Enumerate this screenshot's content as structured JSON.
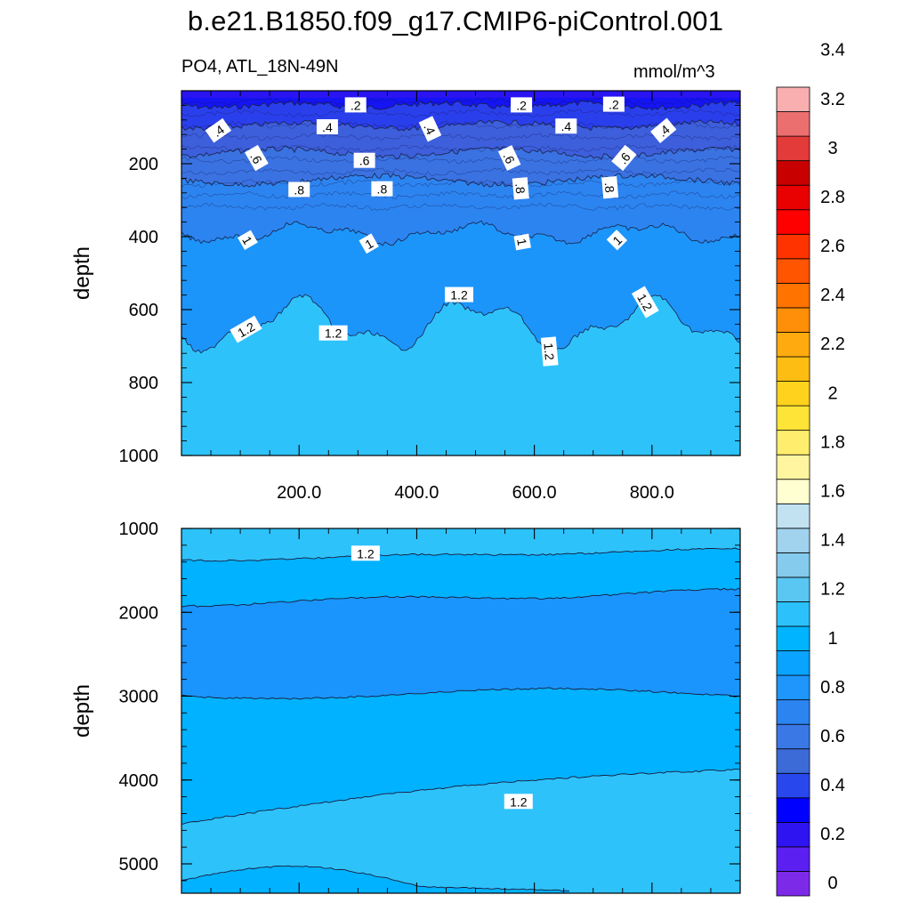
{
  "title": "b.e21.B1850.f09_g17.CMIP6-piControl.001",
  "chart_data": [
    {
      "type": "contour",
      "panel": "upper",
      "variable_label": "PO4, ATL_18N-49N",
      "units_label": "mmol/m^3",
      "ylabel": "depth",
      "xlim": [
        0,
        950
      ],
      "ylim": [
        0,
        1000
      ],
      "xticks": [
        200,
        400,
        600,
        800
      ],
      "xtick_labels": [
        "200.0",
        "400.0",
        "600.0",
        "800.0"
      ],
      "yticks": [
        200,
        400,
        600,
        800,
        1000
      ],
      "ytick_labels": [
        "200",
        "400",
        "600",
        "800",
        "1000"
      ],
      "contour_levels_approx_depth": [
        {
          "level": 0.2,
          "depth": 40
        },
        {
          "level": 0.4,
          "depth": 95
        },
        {
          "level": 0.6,
          "depth": 170
        },
        {
          "level": 0.8,
          "depth": 245
        },
        {
          "level": 1.0,
          "depth": 390
        },
        {
          "level": 1.2,
          "depth": 640
        }
      ],
      "contour_labels": [
        {
          "text": ".2",
          "x": 296,
          "depth": 40,
          "angle": 0
        },
        {
          "text": ".2",
          "x": 578,
          "depth": 40,
          "angle": 0
        },
        {
          "text": ".2",
          "x": 735,
          "depth": 38,
          "angle": 0
        },
        {
          "text": ".4",
          "x": 63,
          "depth": 110,
          "angle": -35
        },
        {
          "text": ".4",
          "x": 248,
          "depth": 100,
          "angle": 0
        },
        {
          "text": ".4",
          "x": 422,
          "depth": 105,
          "angle": 65
        },
        {
          "text": ".4",
          "x": 654,
          "depth": 98,
          "angle": 0
        },
        {
          "text": ".4",
          "x": 820,
          "depth": 110,
          "angle": -40
        },
        {
          "text": ".6",
          "x": 127,
          "depth": 185,
          "angle": 60
        },
        {
          "text": ".6",
          "x": 311,
          "depth": 192,
          "angle": 0
        },
        {
          "text": ".6",
          "x": 557,
          "depth": 185,
          "angle": 65
        },
        {
          "text": ".6",
          "x": 753,
          "depth": 185,
          "angle": -50
        },
        {
          "text": ".8",
          "x": 200,
          "depth": 272,
          "angle": 0
        },
        {
          "text": ".8",
          "x": 341,
          "depth": 270,
          "angle": 0
        },
        {
          "text": ".8",
          "x": 576,
          "depth": 268,
          "angle": 85
        },
        {
          "text": ".8",
          "x": 728,
          "depth": 265,
          "angle": 85
        },
        {
          "text": "1",
          "x": 112,
          "depth": 410,
          "angle": 60
        },
        {
          "text": "1",
          "x": 319,
          "depth": 420,
          "angle": -30
        },
        {
          "text": "1",
          "x": 579,
          "depth": 415,
          "angle": 80
        },
        {
          "text": "1",
          "x": 741,
          "depth": 410,
          "angle": -45
        },
        {
          "text": "1.2",
          "x": 110,
          "depth": 655,
          "angle": -30
        },
        {
          "text": "1.2",
          "x": 258,
          "depth": 665,
          "angle": 0
        },
        {
          "text": "1.2",
          "x": 472,
          "depth": 560,
          "angle": 0
        },
        {
          "text": "1.2",
          "x": 625,
          "depth": 715,
          "angle": 85
        },
        {
          "text": "1.2",
          "x": 788,
          "depth": 580,
          "angle": 60
        }
      ]
    },
    {
      "type": "contour",
      "panel": "lower",
      "ylabel": "depth",
      "xlim": [
        0,
        950
      ],
      "ylim": [
        1000,
        5350
      ],
      "yticks": [
        1000,
        2000,
        3000,
        4000,
        5000
      ],
      "ytick_labels": [
        "1000",
        "2000",
        "3000",
        "4000",
        "5000"
      ],
      "contour_levels_approx_depth": [
        {
          "level": 1.2,
          "depth_left": 1380,
          "depth_right": 1250
        },
        {
          "level": 1.0,
          "depth_left": 1900,
          "depth_right": 1750
        },
        {
          "level": 1.0,
          "depth_left": 2970,
          "depth_right": 2970
        },
        {
          "level": 1.2,
          "depth_left": 4520,
          "depth_right": 3870
        }
      ],
      "contour_labels": [
        {
          "text": "1.2",
          "x": 313,
          "depth": 1300,
          "angle": 0
        },
        {
          "text": "1.2",
          "x": 573,
          "depth": 4260,
          "angle": 0
        }
      ]
    }
  ],
  "colorbar": {
    "labels": [
      "3.4",
      "3.2",
      "3",
      "2.8",
      "2.6",
      "2.4",
      "2.2",
      "2",
      "1.8",
      "1.6",
      "1.4",
      "1.2",
      "1",
      "0.8",
      "0.6",
      "0.4",
      "0.2",
      "0"
    ],
    "colors": [
      "#7c2ae8",
      "#5c1ff2",
      "#2f14f2",
      "#0000ff",
      "#2848ee",
      "#3c6bd8",
      "#3a78e6",
      "#2c84f0",
      "#1e96fb",
      "#0aa3ff",
      "#00b4ff",
      "#2cc1fb",
      "#5ac6f2",
      "#84cbee",
      "#a1d2ee",
      "#c2e2f2",
      "#ffffd1",
      "#fff5a0",
      "#ffee6e",
      "#ffe438",
      "#ffd21e",
      "#fdbd13",
      "#ffab0f",
      "#ff8f08",
      "#ff7300",
      "#ff5400",
      "#ff3300",
      "#ff0000",
      "#e90000",
      "#c80000",
      "#e33a3a",
      "#ec6f6f",
      "#f9afaf"
    ]
  },
  "colors": {
    "upper_fill_top": "#1a1af5",
    "deep_fill": "#2ec2fa",
    "mid_fill": "#00b2ff",
    "core_fill": "#1a95fd"
  }
}
